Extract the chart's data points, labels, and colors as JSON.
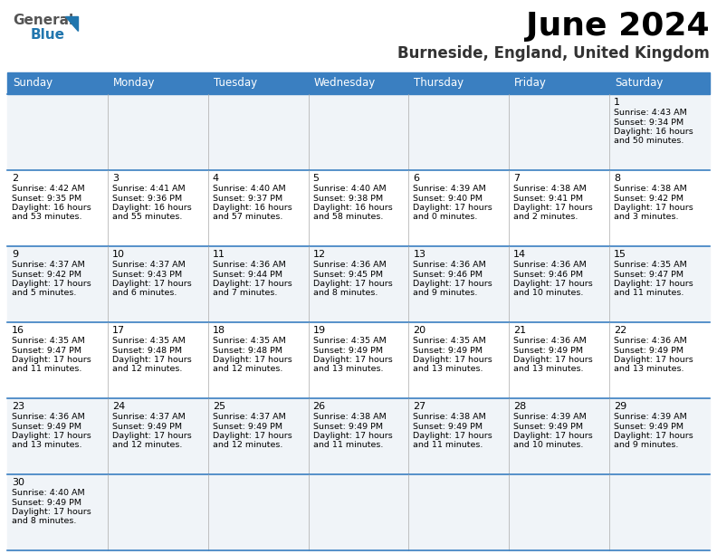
{
  "title": "June 2024",
  "subtitle": "Burneside, England, United Kingdom",
  "header_bg": "#3a7fc1",
  "header_text_color": "#ffffff",
  "days_of_week": [
    "Sunday",
    "Monday",
    "Tuesday",
    "Wednesday",
    "Thursday",
    "Friday",
    "Saturday"
  ],
  "row_bg_alt": "#f0f4f8",
  "row_bg_white": "#ffffff",
  "grid_color": "#3a7fc1",
  "grid_line_color": "#aaaaaa",
  "calendar": [
    [
      null,
      null,
      null,
      null,
      null,
      null,
      {
        "day": "1",
        "sunrise": "4:43 AM",
        "sunset": "9:34 PM",
        "daylight1": "16 hours",
        "daylight2": "and 50 minutes."
      }
    ],
    [
      {
        "day": "2",
        "sunrise": "4:42 AM",
        "sunset": "9:35 PM",
        "daylight1": "16 hours",
        "daylight2": "and 53 minutes."
      },
      {
        "day": "3",
        "sunrise": "4:41 AM",
        "sunset": "9:36 PM",
        "daylight1": "16 hours",
        "daylight2": "and 55 minutes."
      },
      {
        "day": "4",
        "sunrise": "4:40 AM",
        "sunset": "9:37 PM",
        "daylight1": "16 hours",
        "daylight2": "and 57 minutes."
      },
      {
        "day": "5",
        "sunrise": "4:40 AM",
        "sunset": "9:38 PM",
        "daylight1": "16 hours",
        "daylight2": "and 58 minutes."
      },
      {
        "day": "6",
        "sunrise": "4:39 AM",
        "sunset": "9:40 PM",
        "daylight1": "17 hours",
        "daylight2": "and 0 minutes."
      },
      {
        "day": "7",
        "sunrise": "4:38 AM",
        "sunset": "9:41 PM",
        "daylight1": "17 hours",
        "daylight2": "and 2 minutes."
      },
      {
        "day": "8",
        "sunrise": "4:38 AM",
        "sunset": "9:42 PM",
        "daylight1": "17 hours",
        "daylight2": "and 3 minutes."
      }
    ],
    [
      {
        "day": "9",
        "sunrise": "4:37 AM",
        "sunset": "9:42 PM",
        "daylight1": "17 hours",
        "daylight2": "and 5 minutes."
      },
      {
        "day": "10",
        "sunrise": "4:37 AM",
        "sunset": "9:43 PM",
        "daylight1": "17 hours",
        "daylight2": "and 6 minutes."
      },
      {
        "day": "11",
        "sunrise": "4:36 AM",
        "sunset": "9:44 PM",
        "daylight1": "17 hours",
        "daylight2": "and 7 minutes."
      },
      {
        "day": "12",
        "sunrise": "4:36 AM",
        "sunset": "9:45 PM",
        "daylight1": "17 hours",
        "daylight2": "and 8 minutes."
      },
      {
        "day": "13",
        "sunrise": "4:36 AM",
        "sunset": "9:46 PM",
        "daylight1": "17 hours",
        "daylight2": "and 9 minutes."
      },
      {
        "day": "14",
        "sunrise": "4:36 AM",
        "sunset": "9:46 PM",
        "daylight1": "17 hours",
        "daylight2": "and 10 minutes."
      },
      {
        "day": "15",
        "sunrise": "4:35 AM",
        "sunset": "9:47 PM",
        "daylight1": "17 hours",
        "daylight2": "and 11 minutes."
      }
    ],
    [
      {
        "day": "16",
        "sunrise": "4:35 AM",
        "sunset": "9:47 PM",
        "daylight1": "17 hours",
        "daylight2": "and 11 minutes."
      },
      {
        "day": "17",
        "sunrise": "4:35 AM",
        "sunset": "9:48 PM",
        "daylight1": "17 hours",
        "daylight2": "and 12 minutes."
      },
      {
        "day": "18",
        "sunrise": "4:35 AM",
        "sunset": "9:48 PM",
        "daylight1": "17 hours",
        "daylight2": "and 12 minutes."
      },
      {
        "day": "19",
        "sunrise": "4:35 AM",
        "sunset": "9:49 PM",
        "daylight1": "17 hours",
        "daylight2": "and 13 minutes."
      },
      {
        "day": "20",
        "sunrise": "4:35 AM",
        "sunset": "9:49 PM",
        "daylight1": "17 hours",
        "daylight2": "and 13 minutes."
      },
      {
        "day": "21",
        "sunrise": "4:36 AM",
        "sunset": "9:49 PM",
        "daylight1": "17 hours",
        "daylight2": "and 13 minutes."
      },
      {
        "day": "22",
        "sunrise": "4:36 AM",
        "sunset": "9:49 PM",
        "daylight1": "17 hours",
        "daylight2": "and 13 minutes."
      }
    ],
    [
      {
        "day": "23",
        "sunrise": "4:36 AM",
        "sunset": "9:49 PM",
        "daylight1": "17 hours",
        "daylight2": "and 13 minutes."
      },
      {
        "day": "24",
        "sunrise": "4:37 AM",
        "sunset": "9:49 PM",
        "daylight1": "17 hours",
        "daylight2": "and 12 minutes."
      },
      {
        "day": "25",
        "sunrise": "4:37 AM",
        "sunset": "9:49 PM",
        "daylight1": "17 hours",
        "daylight2": "and 12 minutes."
      },
      {
        "day": "26",
        "sunrise": "4:38 AM",
        "sunset": "9:49 PM",
        "daylight1": "17 hours",
        "daylight2": "and 11 minutes."
      },
      {
        "day": "27",
        "sunrise": "4:38 AM",
        "sunset": "9:49 PM",
        "daylight1": "17 hours",
        "daylight2": "and 11 minutes."
      },
      {
        "day": "28",
        "sunrise": "4:39 AM",
        "sunset": "9:49 PM",
        "daylight1": "17 hours",
        "daylight2": "and 10 minutes."
      },
      {
        "day": "29",
        "sunrise": "4:39 AM",
        "sunset": "9:49 PM",
        "daylight1": "17 hours",
        "daylight2": "and 9 minutes."
      }
    ],
    [
      {
        "day": "30",
        "sunrise": "4:40 AM",
        "sunset": "9:49 PM",
        "daylight1": "17 hours",
        "daylight2": "and 8 minutes."
      },
      null,
      null,
      null,
      null,
      null,
      null
    ]
  ]
}
